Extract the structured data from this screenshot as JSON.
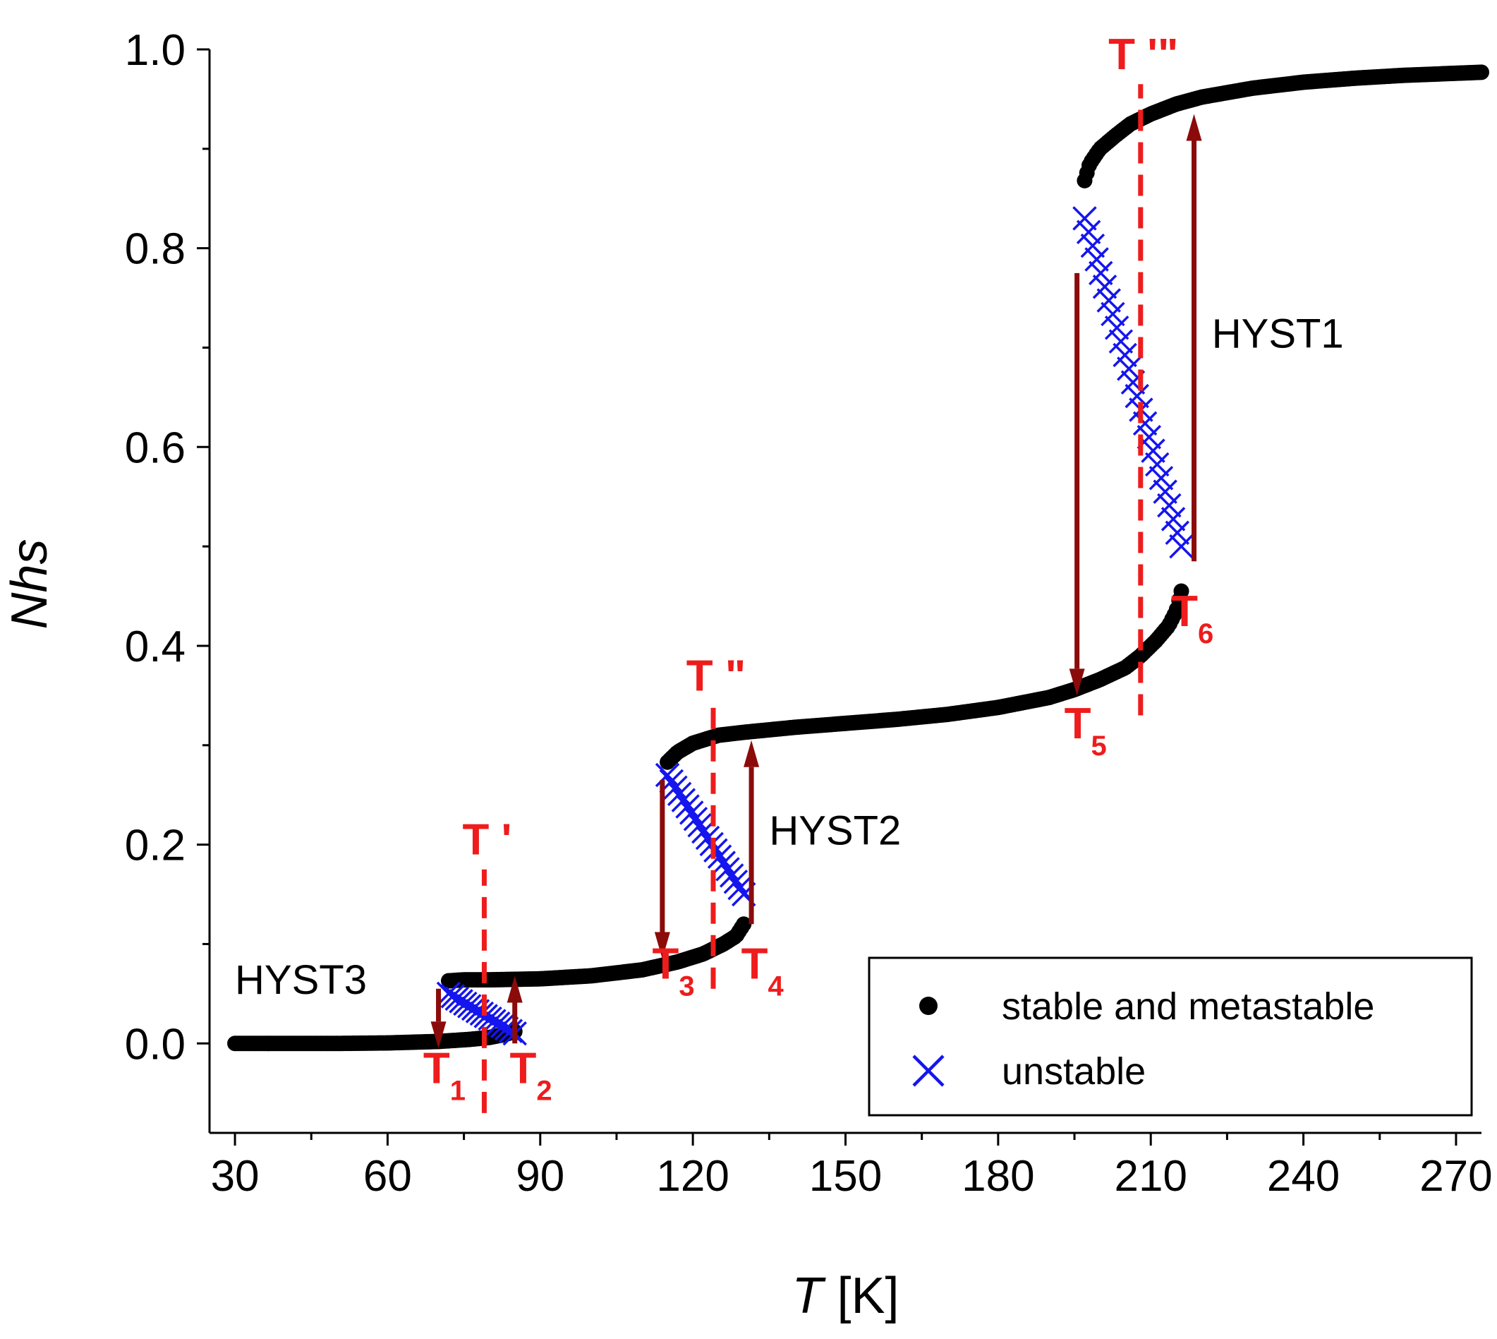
{
  "chart_data": {
    "type": "scatter",
    "xlabel": {
      "symbol": "T",
      "unit": "[K]"
    },
    "ylabel": "Nhs",
    "xlim": [
      25,
      275
    ],
    "ylim": [
      -0.09,
      1.0
    ],
    "xticks": [
      "30",
      "60",
      "90",
      "120",
      "150",
      "180",
      "210",
      "240",
      "270"
    ],
    "yticks": [
      "0.0",
      "0.2",
      "0.4",
      "0.6",
      "0.8",
      "1.0"
    ],
    "colors": {
      "stable": "#000000",
      "unstable": "#1515ee",
      "arrow": "#8b0b0b",
      "marker": "#ee1c1c"
    },
    "series": [
      {
        "name": "stable and metastable",
        "marker": "circle",
        "segments": [
          {
            "x_range": [
              30,
              85
            ],
            "values": [
              [
                30,
                0.0
              ],
              [
                50,
                0.0
              ],
              [
                60,
                0.0005
              ],
              [
                70,
                0.002
              ],
              [
                76,
                0.004
              ],
              [
                80,
                0.006
              ],
              [
                83,
                0.009
              ],
              [
                85,
                0.012
              ]
            ]
          },
          {
            "x_range": [
              72,
              130
            ],
            "values": [
              [
                72,
                0.063
              ],
              [
                75,
                0.064
              ],
              [
                80,
                0.064
              ],
              [
                90,
                0.065
              ],
              [
                100,
                0.068
              ],
              [
                110,
                0.074
              ],
              [
                117,
                0.082
              ],
              [
                122,
                0.09
              ],
              [
                126,
                0.1
              ],
              [
                128.5,
                0.108
              ],
              [
                130,
                0.12
              ]
            ]
          },
          {
            "x_range": [
              115,
              216
            ],
            "values": [
              [
                115,
                0.283
              ],
              [
                117,
                0.293
              ],
              [
                120,
                0.302
              ],
              [
                125,
                0.31
              ],
              [
                130,
                0.313
              ],
              [
                140,
                0.318
              ],
              [
                150,
                0.322
              ],
              [
                160,
                0.326
              ],
              [
                170,
                0.331
              ],
              [
                180,
                0.338
              ],
              [
                190,
                0.348
              ],
              [
                195,
                0.356
              ],
              [
                200,
                0.366
              ],
              [
                205,
                0.378
              ],
              [
                208,
                0.39
              ],
              [
                211,
                0.405
              ],
              [
                213.5,
                0.42
              ],
              [
                215,
                0.435
              ],
              [
                216,
                0.455
              ]
            ]
          },
          {
            "x_range": [
              197,
              275
            ],
            "values": [
              [
                197,
                0.868
              ],
              [
                198,
                0.885
              ],
              [
                200,
                0.9
              ],
              [
                203,
                0.913
              ],
              [
                206,
                0.925
              ],
              [
                210,
                0.935
              ],
              [
                215,
                0.945
              ],
              [
                220,
                0.952
              ],
              [
                230,
                0.961
              ],
              [
                240,
                0.967
              ],
              [
                250,
                0.971
              ],
              [
                260,
                0.974
              ],
              [
                275,
                0.977
              ]
            ]
          }
        ]
      },
      {
        "name": "unstable",
        "marker": "x",
        "segments": [
          {
            "x_range": [
              72,
              85
            ],
            "values": [
              [
                72,
                0.05
              ],
              [
                85,
                0.01
              ]
            ]
          },
          {
            "x_range": [
              115,
              130
            ],
            "values": [
              [
                115,
                0.27
              ],
              [
                130,
                0.15
              ]
            ]
          },
          {
            "x_range": [
              197,
              216
            ],
            "values": [
              [
                197,
                0.83
              ],
              [
                216,
                0.5
              ]
            ]
          }
        ]
      }
    ],
    "vlines": [
      {
        "label": "T '",
        "x": 79,
        "y_range": [
          -0.07,
          0.175
        ],
        "label_y": 0.19
      },
      {
        "label": "T \"",
        "x": 124,
        "y_range": [
          0.055,
          0.34
        ],
        "label_y": 0.355
      },
      {
        "label": "T '\"",
        "x": 208,
        "y_range": [
          0.33,
          0.965
        ],
        "label_y": 0.98
      }
    ],
    "arrows": [
      {
        "x": 70,
        "from": 0.055,
        "to": -0.005
      },
      {
        "x": 85,
        "from": 0.0,
        "to": 0.068
      },
      {
        "x": 114,
        "from": 0.265,
        "to": 0.085
      },
      {
        "x": 131.5,
        "from": 0.12,
        "to": 0.305
      },
      {
        "x": 195.5,
        "from": 0.775,
        "to": 0.35
      },
      {
        "x": 218.5,
        "from": 0.485,
        "to": 0.935
      }
    ],
    "annotations": [
      {
        "name": "hyst1",
        "text": "HYST1",
        "x": 222,
        "y": 0.7
      },
      {
        "name": "hyst2",
        "text": "HYST2",
        "x": 135,
        "y": 0.2
      },
      {
        "name": "hyst3",
        "text": "HYST3",
        "x": 30,
        "y": 0.05
      }
    ],
    "temperature_marks": [
      {
        "name": "t1",
        "base": "T",
        "sub": "1",
        "x": 67,
        "y": -0.04
      },
      {
        "name": "t2",
        "base": "T",
        "sub": "2",
        "x": 84,
        "y": -0.04
      },
      {
        "name": "t3",
        "base": "T",
        "sub": "3",
        "x": 112,
        "y": 0.065
      },
      {
        "name": "t4",
        "base": "T",
        "sub": "4",
        "x": 129.5,
        "y": 0.065
      },
      {
        "name": "t5",
        "base": "T",
        "sub": "5",
        "x": 193,
        "y": 0.307
      },
      {
        "name": "t6",
        "base": "T",
        "sub": "6",
        "x": 214,
        "y": 0.42
      }
    ],
    "legend": {
      "position": "bottom-right",
      "entries": [
        {
          "label": "stable and metastable",
          "marker": "circle"
        },
        {
          "label": "unstable",
          "marker": "x"
        }
      ]
    }
  }
}
